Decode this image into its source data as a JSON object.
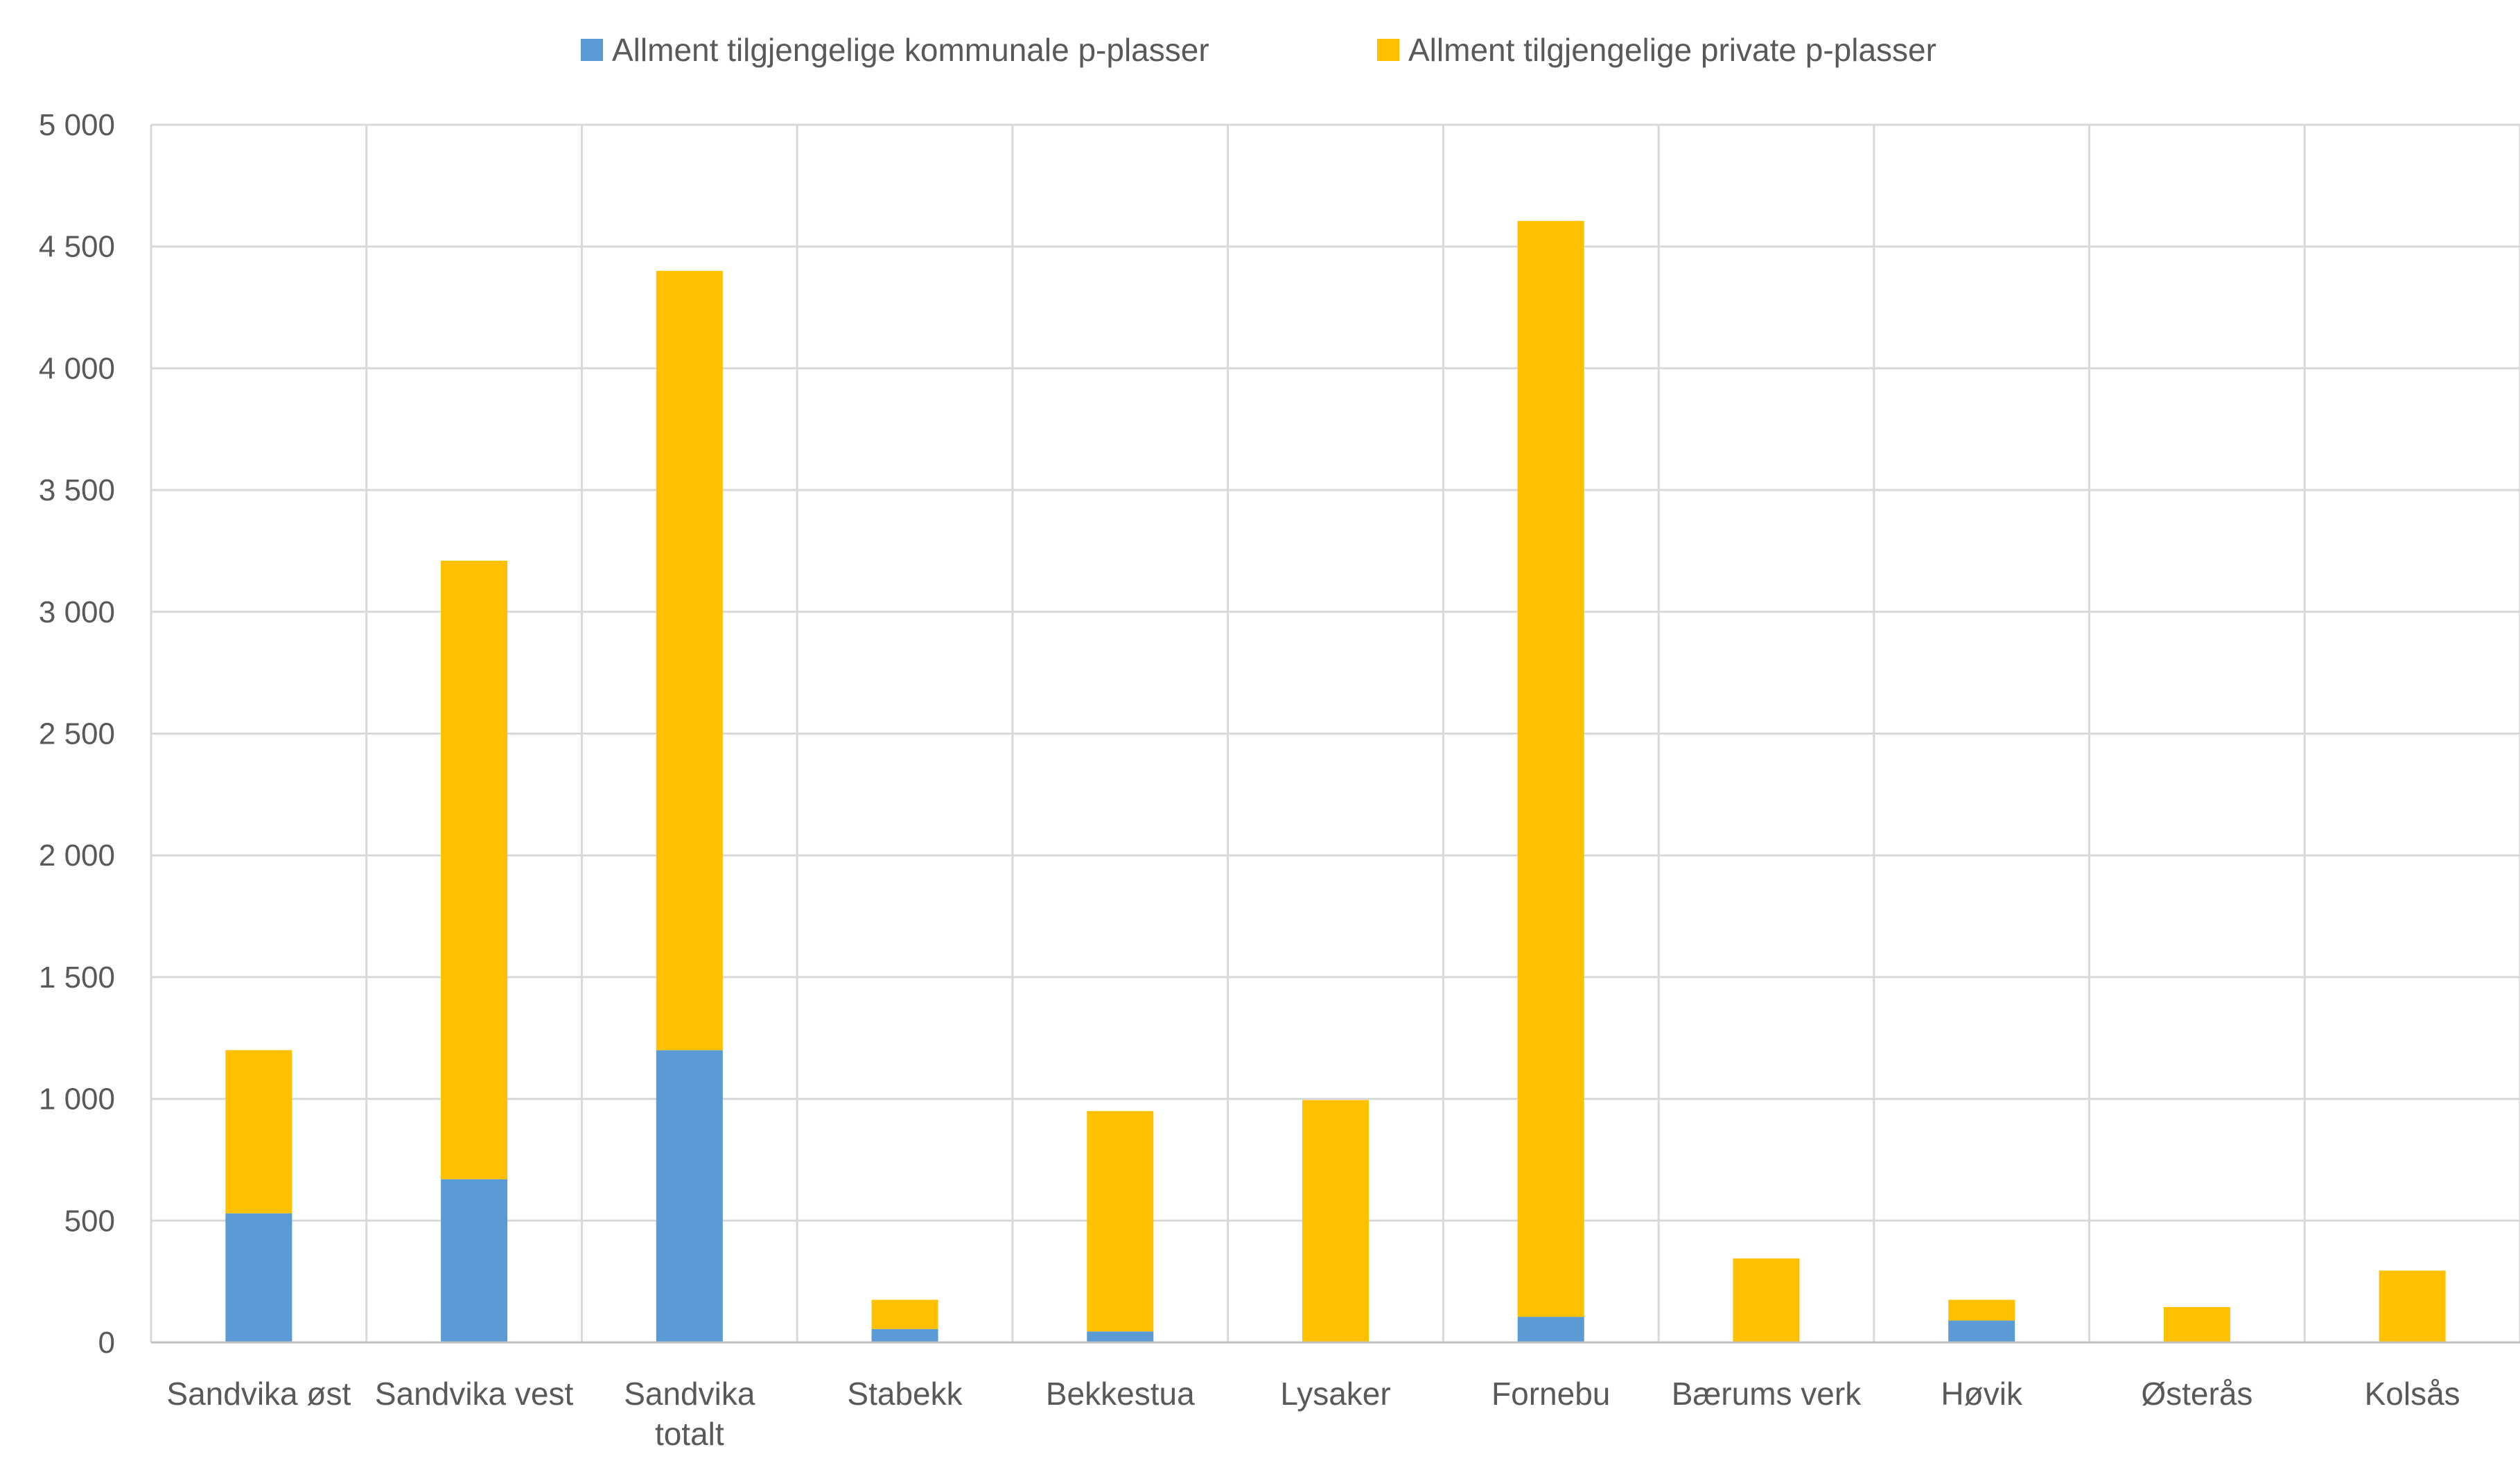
{
  "chart_data": {
    "type": "bar",
    "stacked": true,
    "categories": [
      [
        "Sandvika øst"
      ],
      [
        "Sandvika vest"
      ],
      [
        "Sandvika",
        "totalt"
      ],
      [
        "Stabekk"
      ],
      [
        "Bekkestua"
      ],
      [
        "Lysaker"
      ],
      [
        "Fornebu"
      ],
      [
        "Bærums verk"
      ],
      [
        "Høvik"
      ],
      [
        "Østerås"
      ],
      [
        "Kolsås"
      ]
    ],
    "series": [
      {
        "name": "Allment tilgjengelige kommunale p-plasser",
        "color": "#5B9BD5",
        "values": [
          530,
          670,
          1200,
          55,
          45,
          0,
          105,
          0,
          90,
          0,
          0
        ]
      },
      {
        "name": "Allment tilgjengelige private p-plasser",
        "color": "#FFC000",
        "values": [
          670,
          2540,
          3200,
          120,
          905,
          995,
          4500,
          345,
          85,
          145,
          295
        ]
      }
    ],
    "ylim": [
      0,
      5000
    ],
    "y_ticks": [
      "0",
      "500",
      "1 000",
      "1 500",
      "2 000",
      "2 500",
      "3 000",
      "3 500",
      "4 000",
      "4 500",
      "5 000"
    ],
    "grid": true,
    "legend_position": "top",
    "title": "",
    "xlabel": "",
    "ylabel": ""
  }
}
